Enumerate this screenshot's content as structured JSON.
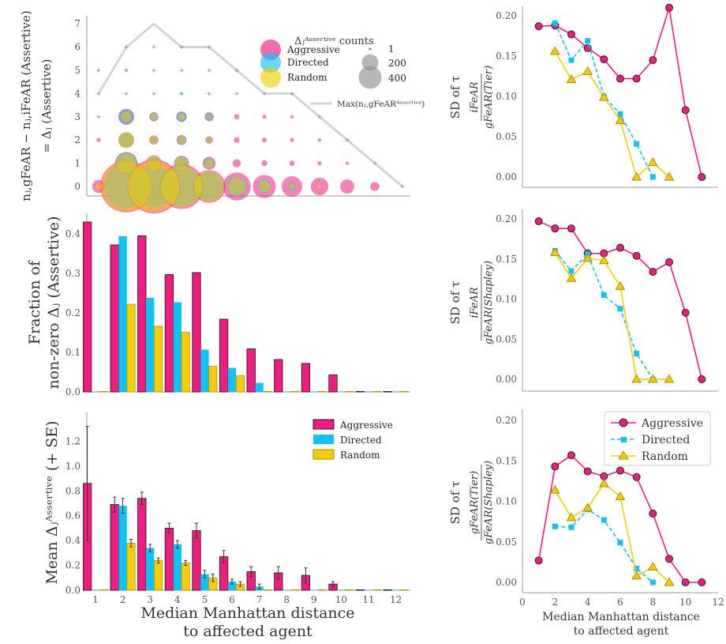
{
  "colors": {
    "Aggressive": "#F01C82",
    "Directed": "#12C2F2",
    "Random": "#F5CC0A"
  },
  "shared_xlabel": [
    "Median Manhattan distance",
    "to affected agent"
  ],
  "chart_data": [
    {
      "id": "bubble",
      "type": "scatter",
      "ylabel_lines": [
        "n_{j, gFeAR}^{Assertive} − n_{j, iFeAR}^{Assertive}",
        "= Δ_j^{Assertive}"
      ],
      "ylabel_line1": "nⱼ,gFeAR − nⱼ,iFeAR (Assertive)",
      "ylabel_line2": "= Δⱼ (Assertive)",
      "xlim": [
        0.5,
        12.5
      ],
      "ylim": [
        -0.3,
        7.3
      ],
      "yticks": [
        0,
        1,
        2,
        3,
        4,
        5,
        6,
        7
      ],
      "legend_title": "Δ_j^{Assertive} counts",
      "legend_title_text": "Δⱼᴬˢˢᵉʳᵗⁱᵛᵉ counts",
      "legend_series": [
        "Aggressive",
        "Directed",
        "Random"
      ],
      "size_legend": [
        1,
        200,
        400
      ],
      "max_label": "Max(n_{j, gFeAR}^{Assertive})",
      "max_label_text": "Max(nⱼ,gFeARᴬˢˢᵉʳᵗⁱᵛᵉ)",
      "max_line": {
        "x": [
          1,
          2,
          3,
          4,
          5,
          6,
          7,
          8,
          9,
          10,
          11,
          12
        ],
        "y": [
          4,
          6,
          7,
          6,
          6,
          5,
          4,
          4,
          3,
          2,
          1,
          0
        ]
      },
      "plus_markers": [
        {
          "x": 2,
          "y": 6
        },
        {
          "x": 3,
          "y": 6
        },
        {
          "x": 4,
          "y": 6
        },
        {
          "x": 5,
          "y": 6
        },
        {
          "x": 2,
          "y": 5
        },
        {
          "x": 3,
          "y": 5
        },
        {
          "x": 4,
          "y": 5
        },
        {
          "x": 5,
          "y": 5
        },
        {
          "x": 6,
          "y": 5
        },
        {
          "x": 1,
          "y": 4
        },
        {
          "x": 2,
          "y": 4
        },
        {
          "x": 3,
          "y": 4
        },
        {
          "x": 4,
          "y": 4
        },
        {
          "x": 5,
          "y": 4
        },
        {
          "x": 6,
          "y": 4
        },
        {
          "x": 7,
          "y": 4
        },
        {
          "x": 8,
          "y": 4
        },
        {
          "x": 1,
          "y": 3
        },
        {
          "x": 9,
          "y": 3
        },
        {
          "x": 10,
          "y": 2
        },
        {
          "x": 11,
          "y": 1
        },
        {
          "x": 12,
          "y": 0
        }
      ],
      "series": [
        {
          "name": "Aggressive",
          "points": [
            {
              "x": 1,
              "y": 0,
              "count": 30
            },
            {
              "x": 2,
              "y": 0,
              "count": 480
            },
            {
              "x": 3,
              "y": 0,
              "count": 520
            },
            {
              "x": 4,
              "y": 0,
              "count": 360
            },
            {
              "x": 5,
              "y": 0,
              "count": 190
            },
            {
              "x": 6,
              "y": 0,
              "count": 140
            },
            {
              "x": 7,
              "y": 0,
              "count": 95
            },
            {
              "x": 8,
              "y": 0,
              "count": 75
            },
            {
              "x": 9,
              "y": 0,
              "count": 55
            },
            {
              "x": 10,
              "y": 0,
              "count": 35
            },
            {
              "x": 11,
              "y": 0,
              "count": 15
            },
            {
              "x": 2,
              "y": 1,
              "count": 90
            },
            {
              "x": 3,
              "y": 1,
              "count": 45
            },
            {
              "x": 4,
              "y": 1,
              "count": 40
            },
            {
              "x": 5,
              "y": 1,
              "count": 30
            },
            {
              "x": 6,
              "y": 1,
              "count": 12
            },
            {
              "x": 7,
              "y": 1,
              "count": 6
            },
            {
              "x": 8,
              "y": 1,
              "count": 5
            },
            {
              "x": 9,
              "y": 1,
              "count": 3
            },
            {
              "x": 10,
              "y": 1,
              "count": 2
            },
            {
              "x": 1,
              "y": 2,
              "count": 3
            },
            {
              "x": 2,
              "y": 2,
              "count": 45
            },
            {
              "x": 3,
              "y": 2,
              "count": 15
            },
            {
              "x": 4,
              "y": 2,
              "count": 18
            },
            {
              "x": 5,
              "y": 2,
              "count": 10
            },
            {
              "x": 6,
              "y": 2,
              "count": 6
            },
            {
              "x": 7,
              "y": 2,
              "count": 4
            },
            {
              "x": 8,
              "y": 2,
              "count": 3
            },
            {
              "x": 9,
              "y": 2,
              "count": 2
            },
            {
              "x": 2,
              "y": 3,
              "count": 45
            },
            {
              "x": 3,
              "y": 3,
              "count": 15
            },
            {
              "x": 4,
              "y": 3,
              "count": 20
            },
            {
              "x": 5,
              "y": 3,
              "count": 15
            },
            {
              "x": 6,
              "y": 3,
              "count": 5
            },
            {
              "x": 7,
              "y": 3,
              "count": 3
            },
            {
              "x": 8,
              "y": 3,
              "count": 2
            },
            {
              "x": 1,
              "y": 5,
              "count": 1
            }
          ]
        },
        {
          "name": "Directed",
          "points": [
            {
              "x": 2,
              "y": 0,
              "count": 330
            },
            {
              "x": 3,
              "y": 0,
              "count": 300
            },
            {
              "x": 4,
              "y": 0,
              "count": 280
            },
            {
              "x": 5,
              "y": 0,
              "count": 140
            },
            {
              "x": 6,
              "y": 0,
              "count": 70
            },
            {
              "x": 7,
              "y": 0,
              "count": 30
            },
            {
              "x": 8,
              "y": 0,
              "count": 12
            },
            {
              "x": 2,
              "y": 1,
              "count": 85
            },
            {
              "x": 3,
              "y": 1,
              "count": 30
            },
            {
              "x": 4,
              "y": 1,
              "count": 35
            },
            {
              "x": 5,
              "y": 1,
              "count": 20
            },
            {
              "x": 2,
              "y": 2,
              "count": 40
            },
            {
              "x": 3,
              "y": 2,
              "count": 10
            },
            {
              "x": 4,
              "y": 2,
              "count": 15
            },
            {
              "x": 5,
              "y": 2,
              "count": 6
            },
            {
              "x": 2,
              "y": 3,
              "count": 40
            },
            {
              "x": 3,
              "y": 3,
              "count": 12
            },
            {
              "x": 4,
              "y": 3,
              "count": 18
            },
            {
              "x": 5,
              "y": 3,
              "count": 10
            },
            {
              "x": 2,
              "y": 5,
              "count": 1
            },
            {
              "x": 4,
              "y": 4,
              "count": 1
            }
          ]
        },
        {
          "name": "Random",
          "points": [
            {
              "x": 2,
              "y": 0,
              "count": 450
            },
            {
              "x": 3,
              "y": 0,
              "count": 460
            },
            {
              "x": 4,
              "y": 0,
              "count": 300
            },
            {
              "x": 5,
              "y": 0,
              "count": 160
            },
            {
              "x": 6,
              "y": 0,
              "count": 60
            },
            {
              "x": 7,
              "y": 0,
              "count": 25
            },
            {
              "x": 8,
              "y": 0,
              "count": 8
            },
            {
              "x": 9,
              "y": 0,
              "count": 3
            },
            {
              "x": 1,
              "y": 0,
              "count": 8
            },
            {
              "x": 2,
              "y": 1,
              "count": 70
            },
            {
              "x": 3,
              "y": 1,
              "count": 40
            },
            {
              "x": 4,
              "y": 1,
              "count": 30
            },
            {
              "x": 5,
              "y": 1,
              "count": 15
            },
            {
              "x": 2,
              "y": 2,
              "count": 45
            },
            {
              "x": 3,
              "y": 2,
              "count": 12
            },
            {
              "x": 4,
              "y": 2,
              "count": 12
            },
            {
              "x": 5,
              "y": 2,
              "count": 6
            },
            {
              "x": 2,
              "y": 3,
              "count": 20
            },
            {
              "x": 3,
              "y": 3,
              "count": 8
            },
            {
              "x": 4,
              "y": 3,
              "count": 8
            },
            {
              "x": 5,
              "y": 3,
              "count": 4
            }
          ]
        }
      ]
    },
    {
      "id": "fraction",
      "type": "bar",
      "ylabel_lines": [
        "Fraction of",
        "non-zero Δ_j^{Assertive}"
      ],
      "ylabel_line1": "Fraction of",
      "ylabel_line2": "non-zero Δⱼ (Assertive)",
      "categories": [
        1,
        2,
        3,
        4,
        5,
        6,
        7,
        8,
        9,
        10,
        11,
        12
      ],
      "ylim": [
        0,
        0.45
      ],
      "yticks": [
        "0.0",
        "0.1",
        "0.2",
        "0.3",
        "0.4"
      ],
      "series": [
        {
          "name": "Aggressive",
          "values": [
            0.43,
            0.372,
            0.395,
            0.297,
            0.302,
            0.184,
            0.109,
            0.082,
            0.072,
            0.043,
            0.0,
            0.0
          ]
        },
        {
          "name": "Directed",
          "values": [
            0.0,
            0.394,
            0.238,
            0.227,
            0.107,
            0.061,
            0.023,
            0.0,
            0.0,
            0.0,
            0.0,
            0.0
          ]
        },
        {
          "name": "Random",
          "values": [
            0.0,
            0.222,
            0.166,
            0.151,
            0.065,
            0.041,
            0.0,
            0.0,
            0.0,
            0.0,
            0.0,
            0.0
          ]
        }
      ]
    },
    {
      "id": "mean",
      "type": "bar",
      "ylabel_lines": [
        "Mean Δ_j^{Assertive} (+ SE)"
      ],
      "ylabel_line1": "Mean Δⱼᴬˢˢᵉʳᵗⁱᵛᵉ (+ SE)",
      "categories": [
        1,
        2,
        3,
        4,
        5,
        6,
        7,
        8,
        9,
        10,
        11,
        12
      ],
      "xticks": [
        "1",
        "2",
        "3",
        "4",
        "5",
        "6",
        "7",
        "8",
        "9",
        "10",
        "11",
        "12"
      ],
      "ylim": [
        0,
        1.4
      ],
      "yticks": [
        "0.0",
        "0.2",
        "0.4",
        "0.6",
        "0.8",
        "1.0",
        "1.2"
      ],
      "legend": [
        "Aggressive",
        "Directed",
        "Random"
      ],
      "series": [
        {
          "name": "Aggressive",
          "values": [
            0.86,
            0.69,
            0.74,
            0.5,
            0.48,
            0.27,
            0.15,
            0.14,
            0.12,
            0.05,
            0.0,
            0.0
          ],
          "se": [
            0.46,
            0.06,
            0.05,
            0.04,
            0.06,
            0.05,
            0.04,
            0.05,
            0.06,
            0.02,
            0.0,
            0.0
          ]
        },
        {
          "name": "Directed",
          "values": [
            0.0,
            0.68,
            0.34,
            0.37,
            0.13,
            0.07,
            0.03,
            0.0,
            0.0,
            0.0,
            0.0,
            0.0
          ],
          "se": [
            0.0,
            0.06,
            0.03,
            0.03,
            0.03,
            0.02,
            0.02,
            0.0,
            0.0,
            0.0,
            0.0,
            0.0
          ]
        },
        {
          "name": "Random",
          "values": [
            0.0,
            0.38,
            0.24,
            0.22,
            0.1,
            0.05,
            0.0,
            0.0,
            0.0,
            0.0,
            0.0,
            0.0
          ],
          "se": [
            0.0,
            0.03,
            0.02,
            0.02,
            0.03,
            0.02,
            0.0,
            0.0,
            0.0,
            0.0,
            0.0,
            0.0
          ]
        }
      ]
    },
    {
      "id": "sd1",
      "type": "line",
      "ylabel": "SD of τ",
      "ylabel_frac": [
        "iFeAR",
        "gFeAR(Tier)"
      ],
      "xlim": [
        0,
        12
      ],
      "ylim": [
        -0.01,
        0.215
      ],
      "yticks": [
        "0.00",
        "0.05",
        "0.10",
        "0.15",
        "0.20"
      ],
      "series": [
        {
          "name": "Aggressive",
          "x": [
            1,
            2,
            3,
            4,
            5,
            6,
            7,
            8,
            9,
            10,
            11
          ],
          "y": [
            0.187,
            0.188,
            0.177,
            0.16,
            0.146,
            0.122,
            0.122,
            0.145,
            0.21,
            0.083,
            0.0
          ]
        },
        {
          "name": "Directed",
          "x": [
            2,
            3,
            4,
            5,
            6,
            7,
            8
          ],
          "y": [
            0.191,
            0.145,
            0.169,
            0.1,
            0.078,
            0.041,
            0.0
          ]
        },
        {
          "name": "Random",
          "x": [
            2,
            3,
            4,
            5,
            6,
            7,
            8,
            9
          ],
          "y": [
            0.156,
            0.121,
            0.131,
            0.099,
            0.07,
            0.0,
            0.018,
            0.0
          ]
        }
      ]
    },
    {
      "id": "sd2",
      "type": "line",
      "ylabel": "SD of τ",
      "ylabel_frac": [
        "iFeAR",
        "gFeAR(Shapley)"
      ],
      "xlim": [
        0,
        12
      ],
      "ylim": [
        -0.01,
        0.215
      ],
      "yticks": [
        "0.00",
        "0.05",
        "0.10",
        "0.15",
        "0.20"
      ],
      "series": [
        {
          "name": "Aggressive",
          "x": [
            1,
            2,
            3,
            4,
            5,
            6,
            7,
            8,
            9,
            10,
            11
          ],
          "y": [
            0.197,
            0.188,
            0.188,
            0.157,
            0.157,
            0.164,
            0.154,
            0.134,
            0.146,
            0.083,
            0.0
          ]
        },
        {
          "name": "Directed",
          "x": [
            2,
            3,
            4,
            5,
            6,
            7,
            8
          ],
          "y": [
            0.16,
            0.135,
            0.156,
            0.105,
            0.088,
            0.032,
            0.0
          ]
        },
        {
          "name": "Random",
          "x": [
            2,
            3,
            4,
            5,
            6,
            7,
            8,
            9
          ],
          "y": [
            0.158,
            0.126,
            0.151,
            0.148,
            0.116,
            0.0,
            0.0,
            0.0
          ]
        }
      ]
    },
    {
      "id": "sd3",
      "type": "line",
      "ylabel": "SD of τ",
      "ylabel_frac": [
        "gFeAR(Tier)",
        "gFeAR(Shapley)"
      ],
      "xlim": [
        0,
        12
      ],
      "ylim": [
        -0.01,
        0.215
      ],
      "yticks": [
        "0.00",
        "0.05",
        "0.10",
        "0.15",
        "0.20"
      ],
      "xticks": [
        "0",
        "2",
        "4",
        "6",
        "8",
        "10",
        "12"
      ],
      "legend": [
        "Aggressive",
        "Directed",
        "Random"
      ],
      "series": [
        {
          "name": "Aggressive",
          "x": [
            1,
            2,
            3,
            4,
            5,
            6,
            7,
            8,
            9,
            10,
            11
          ],
          "y": [
            0.027,
            0.143,
            0.157,
            0.137,
            0.131,
            0.138,
            0.13,
            0.085,
            0.029,
            0.0,
            0.0
          ]
        },
        {
          "name": "Directed",
          "x": [
            2,
            3,
            4,
            5,
            6,
            7,
            8
          ],
          "y": [
            0.069,
            0.068,
            0.09,
            0.077,
            0.049,
            0.017,
            0.0
          ]
        },
        {
          "name": "Random",
          "x": [
            2,
            3,
            4,
            5,
            6,
            7,
            8,
            9
          ],
          "y": [
            0.114,
            0.08,
            0.092,
            0.122,
            0.106,
            0.008,
            0.019,
            0.0
          ]
        }
      ]
    }
  ]
}
